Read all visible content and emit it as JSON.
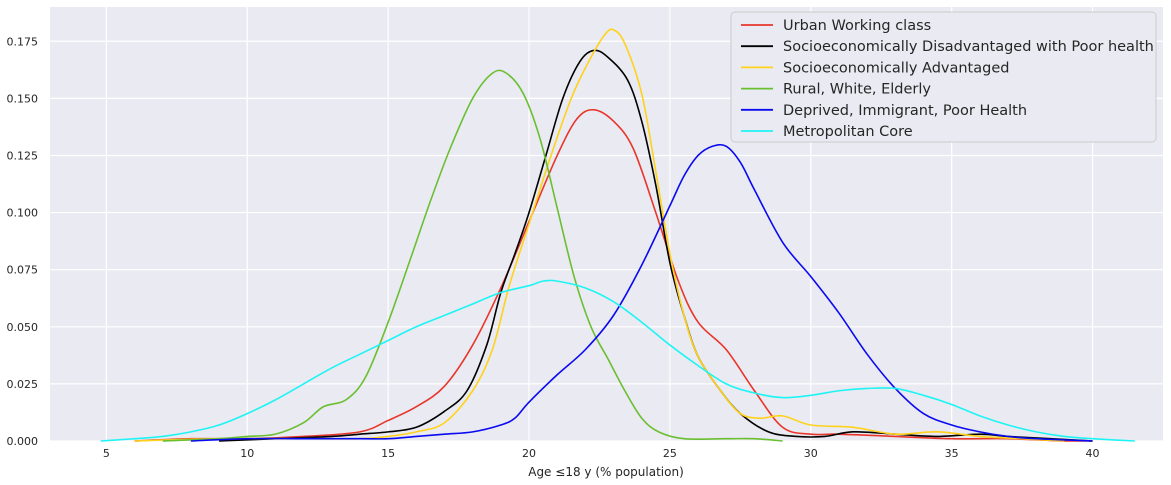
{
  "chart_data": {
    "type": "line",
    "title": "",
    "xlabel": "Age ≤18 y (% population)",
    "ylabel": "",
    "xlim": [
      3,
      42.5
    ],
    "ylim": [
      0,
      0.19
    ],
    "x_ticks": [
      5,
      10,
      15,
      20,
      25,
      30,
      35,
      40
    ],
    "y_ticks": [
      0.0,
      0.025,
      0.05,
      0.075,
      0.1,
      0.125,
      0.15,
      0.175
    ],
    "x_tick_labels": [
      "5",
      "10",
      "15",
      "20",
      "25",
      "30",
      "35",
      "40"
    ],
    "y_tick_labels": [
      "0.000",
      "0.025",
      "0.050",
      "0.075",
      "0.100",
      "0.125",
      "0.150",
      "0.175"
    ],
    "grid": true,
    "legend_position": "top-right",
    "series": [
      {
        "name": "Urban Working class",
        "color": "#e8362b",
        "points": [
          [
            6,
            0
          ],
          [
            8,
            0.001
          ],
          [
            10,
            0.001
          ],
          [
            12,
            0.002
          ],
          [
            14,
            0.004
          ],
          [
            15,
            0.009
          ],
          [
            16,
            0.015
          ],
          [
            17,
            0.024
          ],
          [
            18,
            0.042
          ],
          [
            19,
            0.067
          ],
          [
            20,
            0.096
          ],
          [
            21,
            0.125
          ],
          [
            21.7,
            0.141
          ],
          [
            22.3,
            0.145
          ],
          [
            23,
            0.14
          ],
          [
            23.7,
            0.128
          ],
          [
            24.5,
            0.1
          ],
          [
            25.3,
            0.07
          ],
          [
            26,
            0.052
          ],
          [
            27,
            0.04
          ],
          [
            28,
            0.022
          ],
          [
            29,
            0.006
          ],
          [
            30,
            0.003
          ],
          [
            31,
            0.003
          ],
          [
            33,
            0.002
          ],
          [
            35,
            0.001
          ],
          [
            37,
            0.001
          ],
          [
            39,
            0
          ],
          [
            40,
            0
          ]
        ]
      },
      {
        "name": "Socioeconomically Disadvantaged with Poor health",
        "color": "#000000",
        "points": [
          [
            9,
            0
          ],
          [
            11,
            0.001
          ],
          [
            13,
            0.002
          ],
          [
            14,
            0.003
          ],
          [
            15,
            0.004
          ],
          [
            16,
            0.006
          ],
          [
            17,
            0.013
          ],
          [
            17.8,
            0.022
          ],
          [
            18.5,
            0.042
          ],
          [
            19,
            0.065
          ],
          [
            19.5,
            0.082
          ],
          [
            20,
            0.1
          ],
          [
            20.6,
            0.125
          ],
          [
            21.2,
            0.15
          ],
          [
            21.8,
            0.166
          ],
          [
            22.3,
            0.171
          ],
          [
            22.8,
            0.168
          ],
          [
            23.5,
            0.158
          ],
          [
            24,
            0.14
          ],
          [
            24.5,
            0.112
          ],
          [
            25,
            0.078
          ],
          [
            25.5,
            0.055
          ],
          [
            26,
            0.037
          ],
          [
            26.8,
            0.022
          ],
          [
            27.5,
            0.012
          ],
          [
            28.5,
            0.004
          ],
          [
            29.5,
            0.002
          ],
          [
            30.5,
            0.002
          ],
          [
            31.5,
            0.004
          ],
          [
            33,
            0.003
          ],
          [
            34.5,
            0.002
          ],
          [
            36,
            0.003
          ],
          [
            37,
            0.002
          ],
          [
            38.5,
            0.001
          ],
          [
            40,
            0
          ]
        ]
      },
      {
        "name": "Socioeconomically Advantaged",
        "color": "#ffd21a",
        "points": [
          [
            6,
            0
          ],
          [
            9,
            0.001
          ],
          [
            12,
            0.001
          ],
          [
            14,
            0.001
          ],
          [
            15,
            0.002
          ],
          [
            16,
            0.004
          ],
          [
            17,
            0.008
          ],
          [
            18,
            0.022
          ],
          [
            18.7,
            0.04
          ],
          [
            19.3,
            0.068
          ],
          [
            20,
            0.095
          ],
          [
            20.7,
            0.122
          ],
          [
            21.5,
            0.15
          ],
          [
            22.2,
            0.168
          ],
          [
            22.7,
            0.178
          ],
          [
            23,
            0.18
          ],
          [
            23.4,
            0.174
          ],
          [
            24,
            0.152
          ],
          [
            24.5,
            0.118
          ],
          [
            25,
            0.082
          ],
          [
            25.5,
            0.055
          ],
          [
            26,
            0.037
          ],
          [
            26.8,
            0.022
          ],
          [
            27.5,
            0.012
          ],
          [
            28.2,
            0.01
          ],
          [
            29,
            0.011
          ],
          [
            30,
            0.007
          ],
          [
            31.5,
            0.006
          ],
          [
            33,
            0.003
          ],
          [
            34.5,
            0.004
          ],
          [
            36,
            0.002
          ],
          [
            37.5,
            0.001
          ],
          [
            39,
            0
          ]
        ]
      },
      {
        "name": "Rural, White, Elderly",
        "color": "#6abf30",
        "points": [
          [
            7,
            0
          ],
          [
            9,
            0.001
          ],
          [
            10,
            0.002
          ],
          [
            11,
            0.003
          ],
          [
            12,
            0.008
          ],
          [
            12.7,
            0.015
          ],
          [
            13.5,
            0.018
          ],
          [
            14.2,
            0.028
          ],
          [
            15,
            0.052
          ],
          [
            15.8,
            0.08
          ],
          [
            16.5,
            0.105
          ],
          [
            17.2,
            0.128
          ],
          [
            18,
            0.15
          ],
          [
            18.7,
            0.161
          ],
          [
            19.2,
            0.161
          ],
          [
            19.8,
            0.152
          ],
          [
            20.4,
            0.132
          ],
          [
            21,
            0.102
          ],
          [
            21.6,
            0.072
          ],
          [
            22.2,
            0.05
          ],
          [
            22.8,
            0.036
          ],
          [
            23.4,
            0.022
          ],
          [
            24,
            0.01
          ],
          [
            24.6,
            0.004
          ],
          [
            25.5,
            0.001
          ],
          [
            27,
            0.001
          ],
          [
            28,
            0.001
          ],
          [
            29,
            0
          ]
        ]
      },
      {
        "name": "Deprived, Immigrant, Poor Health",
        "color": "#0a0af0",
        "points": [
          [
            8,
            0
          ],
          [
            10,
            0.001
          ],
          [
            12,
            0.001
          ],
          [
            14,
            0.001
          ],
          [
            15,
            0.001
          ],
          [
            16,
            0.002
          ],
          [
            17,
            0.003
          ],
          [
            18,
            0.004
          ],
          [
            19,
            0.007
          ],
          [
            19.5,
            0.01
          ],
          [
            20,
            0.017
          ],
          [
            21,
            0.029
          ],
          [
            22,
            0.04
          ],
          [
            23,
            0.055
          ],
          [
            24,
            0.077
          ],
          [
            25,
            0.103
          ],
          [
            25.5,
            0.116
          ],
          [
            26,
            0.125
          ],
          [
            26.5,
            0.129
          ],
          [
            27,
            0.129
          ],
          [
            27.5,
            0.122
          ],
          [
            28,
            0.11
          ],
          [
            29,
            0.087
          ],
          [
            30,
            0.072
          ],
          [
            31,
            0.056
          ],
          [
            32,
            0.038
          ],
          [
            33,
            0.023
          ],
          [
            34,
            0.012
          ],
          [
            35,
            0.007
          ],
          [
            36,
            0.004
          ],
          [
            37,
            0.002
          ],
          [
            38,
            0.001
          ],
          [
            40,
            0
          ]
        ]
      },
      {
        "name": "Metropolitan Core",
        "color": "#1ef4f4",
        "points": [
          [
            4.8,
            0
          ],
          [
            6,
            0.001
          ],
          [
            7,
            0.002
          ],
          [
            8,
            0.004
          ],
          [
            9,
            0.007
          ],
          [
            10,
            0.012
          ],
          [
            11,
            0.018
          ],
          [
            12,
            0.025
          ],
          [
            13,
            0.032
          ],
          [
            14,
            0.038
          ],
          [
            15,
            0.044
          ],
          [
            16,
            0.05
          ],
          [
            17,
            0.055
          ],
          [
            18,
            0.06
          ],
          [
            19,
            0.065
          ],
          [
            20,
            0.068
          ],
          [
            20.5,
            0.07
          ],
          [
            21,
            0.07
          ],
          [
            22,
            0.067
          ],
          [
            23,
            0.061
          ],
          [
            24,
            0.052
          ],
          [
            25,
            0.042
          ],
          [
            26,
            0.033
          ],
          [
            27,
            0.025
          ],
          [
            28,
            0.021
          ],
          [
            29,
            0.019
          ],
          [
            30,
            0.02
          ],
          [
            31,
            0.022
          ],
          [
            32,
            0.023
          ],
          [
            33,
            0.023
          ],
          [
            34,
            0.02
          ],
          [
            35,
            0.016
          ],
          [
            36,
            0.011
          ],
          [
            37,
            0.007
          ],
          [
            38,
            0.004
          ],
          [
            39,
            0.002
          ],
          [
            40,
            0.001
          ],
          [
            41.5,
            0
          ]
        ]
      }
    ]
  }
}
